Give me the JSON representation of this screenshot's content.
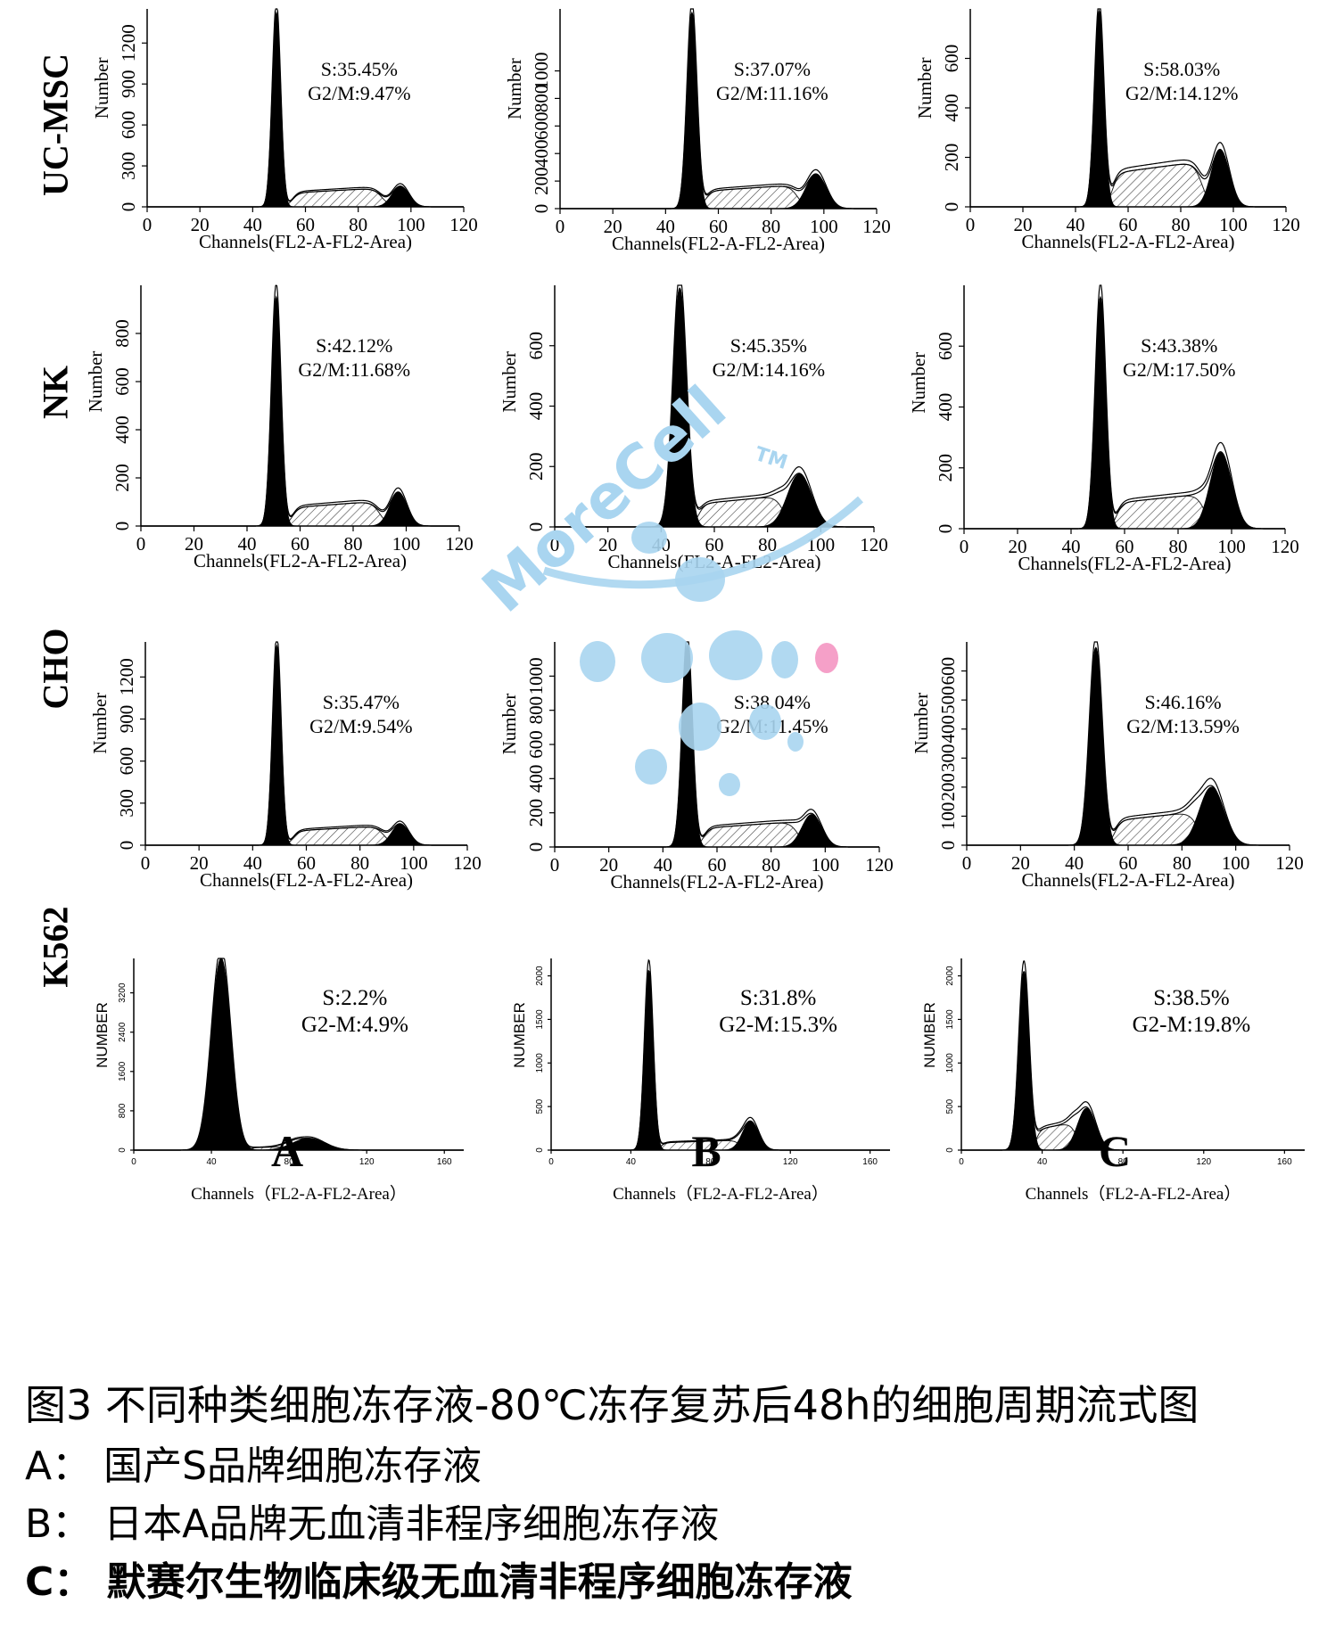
{
  "caption": {
    "title": "图3 不同种类细胞冻存液-80℃冻存复苏后48h的细胞周期流式图",
    "lines": [
      "A：  国产S品牌细胞冻存液",
      "B：  日本A品牌无血清非程序细胞冻存液",
      "C：  默赛尔生物临床级无血清非程序细胞冻存液"
    ]
  },
  "column_labels": [
    "A",
    "B",
    "C"
  ],
  "row_labels": [
    "UC-MSC",
    "NK",
    "CHO",
    "K562"
  ],
  "watermark": {
    "text": "MoreCell",
    "tm": "TM",
    "color": "#a9d5f0"
  },
  "chart_data": [
    {
      "type": "area",
      "row": "UC-MSC",
      "column": "A",
      "xlabel": "Channels(FL2-A-FL2-Area)",
      "ylabel": "Number",
      "xlim": [
        0,
        120
      ],
      "ylim": [
        0,
        1450
      ],
      "xticks": [
        0,
        20,
        40,
        60,
        80,
        100,
        120
      ],
      "yticks": [
        0,
        300,
        600,
        900,
        1200
      ],
      "g1_peak": {
        "x": 49,
        "y": 1420,
        "width": 1.6
      },
      "g2_peak": {
        "x": 96,
        "y": 150,
        "width": 3.2
      },
      "s_level": 120,
      "s_range": [
        55,
        89
      ],
      "annotations": [
        "S:35.45%",
        "G2/M:9.47%"
      ]
    },
    {
      "type": "area",
      "row": "UC-MSC",
      "column": "B",
      "xlabel": "Channels(FL2-A-FL2-Area)",
      "ylabel": "Number",
      "xlim": [
        0,
        120
      ],
      "ylim": [
        0,
        1450
      ],
      "xticks": [
        0,
        20,
        40,
        60,
        80,
        100,
        120
      ],
      "yticks": [
        0,
        200,
        400,
        600,
        800,
        1000
      ],
      "g1_peak": {
        "x": 50,
        "y": 1420,
        "width": 1.9
      },
      "g2_peak": {
        "x": 97,
        "y": 250,
        "width": 3.8
      },
      "s_level": 150,
      "s_range": [
        55,
        90
      ],
      "annotations": [
        "S:37.07%",
        "G2/M:11.16%"
      ]
    },
    {
      "type": "area",
      "row": "UC-MSC",
      "column": "C",
      "xlabel": "Channels(FL2-A-FL2-Area)",
      "ylabel": "Number",
      "xlim": [
        0,
        120
      ],
      "ylim": [
        0,
        800
      ],
      "xticks": [
        0,
        20,
        40,
        60,
        80,
        100,
        120
      ],
      "yticks": [
        0,
        200,
        400,
        600
      ],
      "g1_peak": {
        "x": 49,
        "y": 790,
        "width": 1.8
      },
      "g2_peak": {
        "x": 95,
        "y": 230,
        "width": 3.4
      },
      "s_level": 160,
      "s_range": [
        54,
        88
      ],
      "annotations": [
        "S:58.03%",
        "G2/M:14.12%"
      ]
    },
    {
      "type": "area",
      "row": "NK",
      "column": "A",
      "xlabel": "Channels(FL2-A-FL2-Area)",
      "ylabel": "Number",
      "xlim": [
        0,
        120
      ],
      "ylim": [
        0,
        1000
      ],
      "xticks": [
        0,
        20,
        40,
        60,
        80,
        100,
        120
      ],
      "yticks": [
        0,
        200,
        400,
        600,
        800
      ],
      "g1_peak": {
        "x": 51,
        "y": 950,
        "width": 1.8
      },
      "g2_peak": {
        "x": 97,
        "y": 140,
        "width": 3.2
      },
      "s_level": 90,
      "s_range": [
        57,
        90
      ],
      "annotations": [
        "S:42.12%",
        "G2/M:11.68%"
      ]
    },
    {
      "type": "area",
      "row": "NK",
      "column": "B",
      "xlabel": "Channels(FL2-A-FL2-Area)",
      "ylabel": "Number",
      "xlim": [
        0,
        120
      ],
      "ylim": [
        0,
        800
      ],
      "xticks": [
        0,
        20,
        40,
        60,
        80,
        100,
        120
      ],
      "yticks": [
        0,
        200,
        400,
        600
      ],
      "g1_peak": {
        "x": 47,
        "y": 790,
        "width": 2.6
      },
      "g2_peak": {
        "x": 92,
        "y": 175,
        "width": 4.5
      },
      "s_level": 90,
      "s_range": [
        54,
        86
      ],
      "annotations": [
        "S:45.35%",
        "G2/M:14.16%"
      ]
    },
    {
      "type": "area",
      "row": "NK",
      "column": "C",
      "xlabel": "Channels(FL2-A-FL2-Area)",
      "ylabel": "Number",
      "xlim": [
        0,
        120
      ],
      "ylim": [
        0,
        800
      ],
      "xticks": [
        0,
        20,
        40,
        60,
        80,
        100,
        120
      ],
      "yticks": [
        0,
        200,
        400,
        600
      ],
      "g1_peak": {
        "x": 51,
        "y": 760,
        "width": 2.0
      },
      "g2_peak": {
        "x": 96,
        "y": 250,
        "width": 4.0
      },
      "s_level": 100,
      "s_range": [
        57,
        90
      ],
      "annotations": [
        "S:43.38%",
        "G2/M:17.50%"
      ]
    },
    {
      "type": "area",
      "row": "CHO",
      "column": "A",
      "xlabel": "Channels(FL2-A-FL2-Area)",
      "ylabel": "Number",
      "xlim": [
        0,
        120
      ],
      "ylim": [
        0,
        1450
      ],
      "xticks": [
        0,
        20,
        40,
        60,
        80,
        100,
        120
      ],
      "yticks": [
        0,
        300,
        600,
        900,
        1200
      ],
      "g1_peak": {
        "x": 49,
        "y": 1420,
        "width": 1.6
      },
      "g2_peak": {
        "x": 95,
        "y": 150,
        "width": 3.2
      },
      "s_level": 120,
      "s_range": [
        55,
        89
      ],
      "annotations": [
        "S:35.47%",
        "G2/M:9.54%"
      ]
    },
    {
      "type": "area",
      "row": "CHO",
      "column": "B",
      "xlabel": "Channels(FL2-A-FL2-Area)",
      "ylabel": "Number",
      "xlim": [
        0,
        120
      ],
      "ylim": [
        0,
        1200
      ],
      "xticks": [
        0,
        20,
        40,
        60,
        80,
        100,
        120
      ],
      "yticks": [
        0,
        200,
        400,
        600,
        800,
        1000
      ],
      "g1_peak": {
        "x": 49,
        "y": 1180,
        "width": 1.9
      },
      "g2_peak": {
        "x": 95,
        "y": 190,
        "width": 3.6
      },
      "s_level": 130,
      "s_range": [
        55,
        90
      ],
      "annotations": [
        "S:38.04%",
        "G2/M:11.45%"
      ]
    },
    {
      "type": "area",
      "row": "CHO",
      "column": "C",
      "xlabel": "Channels(FL2-A-FL2-Area)",
      "ylabel": "Number",
      "xlim": [
        0,
        120
      ],
      "ylim": [
        0,
        700
      ],
      "xticks": [
        0,
        20,
        40,
        60,
        80,
        100,
        120
      ],
      "yticks": [
        0,
        100,
        200,
        300,
        400,
        500,
        600
      ],
      "g1_peak": {
        "x": 48,
        "y": 680,
        "width": 2.4
      },
      "g2_peak": {
        "x": 91,
        "y": 200,
        "width": 4.5
      },
      "s_level": 100,
      "s_range": [
        55,
        86
      ],
      "annotations": [
        "S:46.16%",
        "G2/M:13.59%"
      ]
    },
    {
      "type": "area",
      "row": "K562",
      "column": "A",
      "xlabel": "Channels（FL2-A-FL2-Area）",
      "ylabel": "NUMBER",
      "xlim": [
        0,
        170
      ],
      "ylim": [
        0,
        3900
      ],
      "xticks": [
        0,
        40,
        80,
        120,
        160
      ],
      "yticks": [
        0,
        800,
        1600,
        2400,
        3200
      ],
      "g1_peak": {
        "x": 45,
        "y": 3900,
        "width": 5.0
      },
      "g2_peak": {
        "x": 90,
        "y": 240,
        "width": 8.0
      },
      "s_level": 60,
      "s_range": [
        60,
        85
      ],
      "annotations": [
        "S:2.2%",
        "G2-M:4.9%"
      ]
    },
    {
      "type": "area",
      "row": "K562",
      "column": "B",
      "xlabel": "Channels（FL2-A-FL2-Area）",
      "ylabel": "NUMBER",
      "xlim": [
        0,
        170
      ],
      "ylim": [
        0,
        2200
      ],
      "xticks": [
        0,
        40,
        80,
        120,
        160
      ],
      "yticks": [
        0,
        500,
        1000,
        1500,
        2000
      ],
      "g1_peak": {
        "x": 49,
        "y": 2060,
        "width": 2.2
      },
      "g2_peak": {
        "x": 100,
        "y": 330,
        "width": 4.0
      },
      "s_level": 100,
      "s_range": [
        55,
        95
      ],
      "annotations": [
        "S:31.8%",
        "G2-M:15.3%"
      ]
    },
    {
      "type": "area",
      "row": "K562",
      "column": "C",
      "xlabel": "Channels（FL2-A-FL2-Area）",
      "ylabel": "NUMBER",
      "xlim": [
        0,
        170
      ],
      "ylim": [
        0,
        2200
      ],
      "xticks": [
        0,
        40,
        80,
        120,
        160
      ],
      "yticks": [
        0,
        500,
        1000,
        1500,
        2000
      ],
      "g1_peak": {
        "x": 31,
        "y": 2050,
        "width": 2.6
      },
      "g2_peak": {
        "x": 62,
        "y": 480,
        "width": 4.5
      },
      "s_level": 280,
      "s_range": [
        37,
        57
      ],
      "annotations": [
        "S:38.5%",
        "G2-M:19.8%"
      ]
    }
  ]
}
